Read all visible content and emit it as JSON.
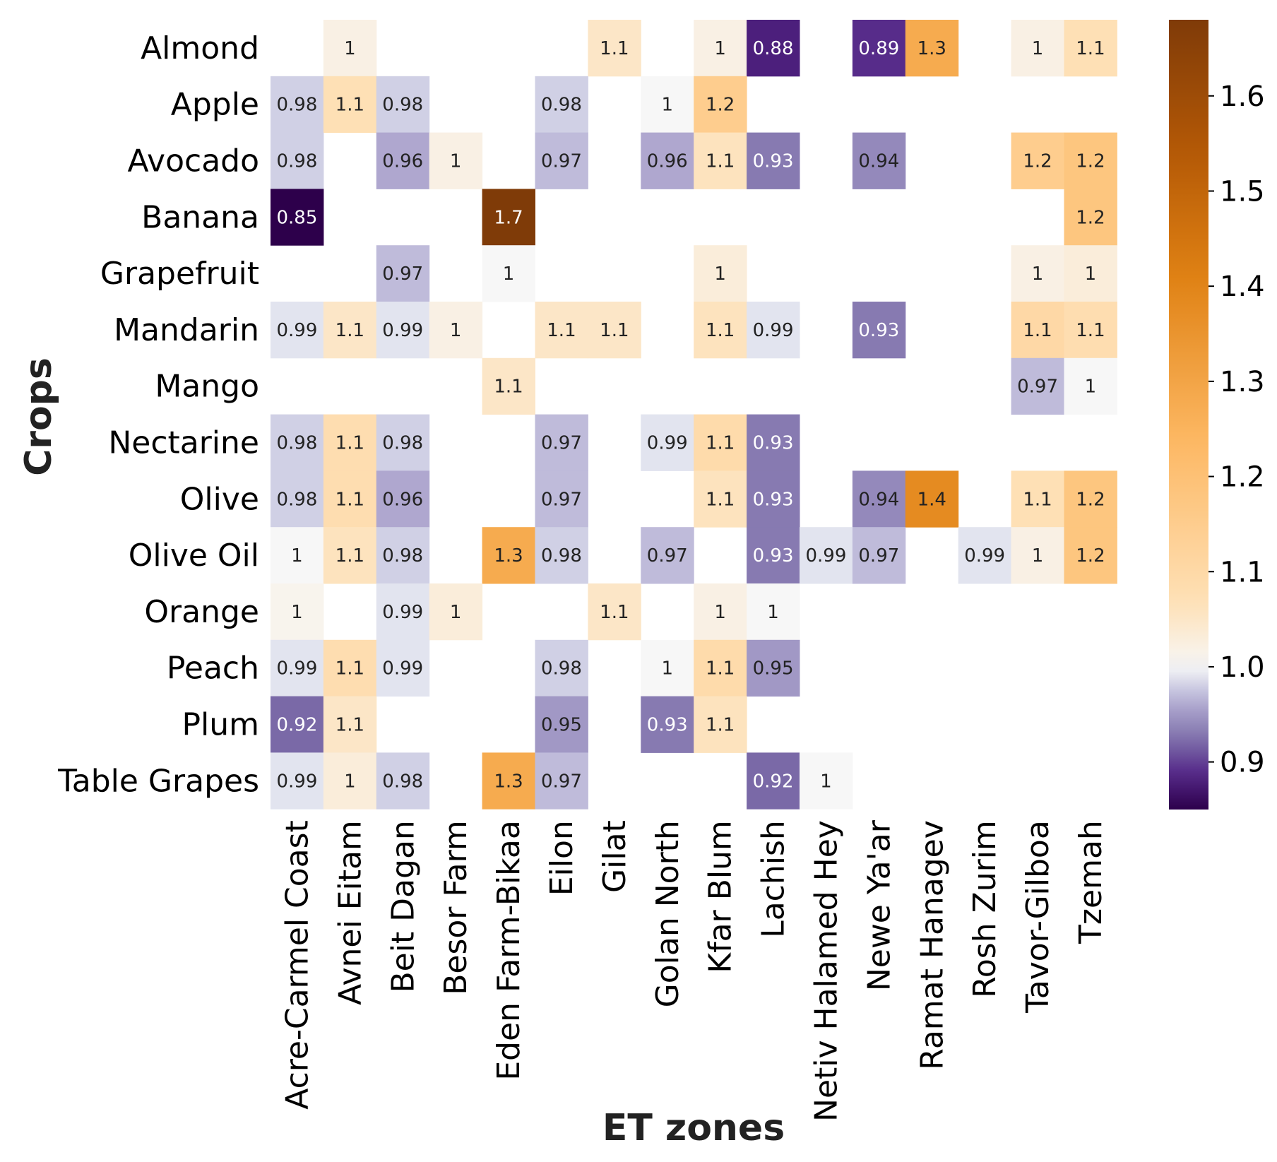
{
  "chart_data": {
    "type": "heatmap",
    "title": "",
    "xlabel": "ET zones",
    "ylabel": "Crops",
    "columns": [
      "Acre-Carmel Coast",
      "Avnei Eitam",
      "Beit Dagan",
      "Besor Farm",
      "Eden Farm-Bikaa",
      "Eilon",
      "Gilat",
      "Golan North",
      "Kfar Blum",
      "Lachish",
      "Netiv Halamed Hey",
      "Newe Ya'ar",
      "Ramat Hanagev",
      "Rosh Zurim",
      "Tavor-Gilboa",
      "Tzemah"
    ],
    "rows": [
      "Almond",
      "Apple",
      "Avocado",
      "Banana",
      "Grapefruit",
      "Mandarin",
      "Mango",
      "Nectarine",
      "Olive",
      "Olive Oil",
      "Orange",
      "Peach",
      "Plum",
      "Table Grapes"
    ],
    "values": [
      [
        null,
        1.02,
        null,
        null,
        null,
        null,
        1.05,
        null,
        1.02,
        0.88,
        null,
        0.89,
        1.28,
        null,
        1.02,
        1.07
      ],
      [
        0.98,
        1.07,
        0.98,
        null,
        null,
        0.98,
        null,
        1.0,
        1.15,
        null,
        null,
        null,
        null,
        null,
        null,
        null
      ],
      [
        0.98,
        null,
        0.96,
        1.02,
        null,
        0.97,
        null,
        0.96,
        1.06,
        0.93,
        null,
        0.94,
        null,
        null,
        1.15,
        1.18
      ],
      [
        0.85,
        null,
        null,
        null,
        1.68,
        null,
        null,
        null,
        null,
        null,
        null,
        null,
        null,
        null,
        null,
        1.18
      ],
      [
        null,
        null,
        0.97,
        null,
        1.0,
        null,
        null,
        null,
        1.03,
        null,
        null,
        null,
        null,
        null,
        1.02,
        1.03
      ],
      [
        0.99,
        1.05,
        0.99,
        1.02,
        null,
        1.05,
        1.05,
        null,
        1.06,
        0.99,
        null,
        0.93,
        null,
        null,
        1.1,
        1.08
      ],
      [
        null,
        null,
        null,
        null,
        1.05,
        null,
        null,
        null,
        null,
        null,
        null,
        null,
        null,
        null,
        0.97,
        1.0
      ],
      [
        0.98,
        1.08,
        0.98,
        null,
        null,
        0.97,
        null,
        0.99,
        1.09,
        0.93,
        null,
        null,
        null,
        null,
        null,
        null
      ],
      [
        0.98,
        1.08,
        0.96,
        null,
        null,
        0.97,
        null,
        null,
        1.06,
        0.93,
        null,
        0.94,
        1.38,
        null,
        1.07,
        1.18
      ],
      [
        1.0,
        1.06,
        0.98,
        null,
        1.28,
        0.98,
        null,
        0.97,
        null,
        0.93,
        0.99,
        0.97,
        null,
        0.99,
        1.02,
        1.18
      ],
      [
        1.01,
        null,
        0.99,
        1.03,
        null,
        null,
        1.05,
        null,
        1.02,
        1.0,
        null,
        null,
        null,
        null,
        null,
        null
      ],
      [
        0.99,
        1.08,
        0.99,
        null,
        null,
        0.98,
        null,
        1.0,
        1.09,
        0.95,
        null,
        null,
        null,
        null,
        null,
        null
      ],
      [
        0.92,
        1.05,
        null,
        null,
        null,
        0.95,
        null,
        0.93,
        1.06,
        null,
        null,
        null,
        null,
        null,
        null,
        null
      ],
      [
        0.99,
        1.03,
        0.98,
        null,
        1.28,
        0.97,
        null,
        null,
        null,
        0.92,
        1.0,
        null,
        null,
        null,
        null,
        null
      ]
    ],
    "labels": [
      [
        null,
        "1",
        null,
        null,
        null,
        null,
        "1.1",
        null,
        "1",
        "0.88",
        null,
        "0.89",
        "1.3",
        null,
        "1",
        "1.1"
      ],
      [
        "0.98",
        "1.1",
        "0.98",
        null,
        null,
        "0.98",
        null,
        "1",
        "1.2",
        null,
        null,
        null,
        null,
        null,
        null,
        null
      ],
      [
        "0.98",
        null,
        "0.96",
        "1",
        null,
        "0.97",
        null,
        "0.96",
        "1.1",
        "0.93",
        null,
        "0.94",
        null,
        null,
        "1.2",
        "1.2"
      ],
      [
        "0.85",
        null,
        null,
        null,
        "1.7",
        null,
        null,
        null,
        null,
        null,
        null,
        null,
        null,
        null,
        null,
        "1.2"
      ],
      [
        null,
        null,
        "0.97",
        null,
        "1",
        null,
        null,
        null,
        "1",
        null,
        null,
        null,
        null,
        null,
        "1",
        "1"
      ],
      [
        "0.99",
        "1.1",
        "0.99",
        "1",
        null,
        "1.1",
        "1.1",
        null,
        "1.1",
        "0.99",
        null,
        "0.93",
        null,
        null,
        "1.1",
        "1.1"
      ],
      [
        null,
        null,
        null,
        null,
        "1.1",
        null,
        null,
        null,
        null,
        null,
        null,
        null,
        null,
        null,
        "0.97",
        "1"
      ],
      [
        "0.98",
        "1.1",
        "0.98",
        null,
        null,
        "0.97",
        null,
        "0.99",
        "1.1",
        "0.93",
        null,
        null,
        null,
        null,
        null,
        null
      ],
      [
        "0.98",
        "1.1",
        "0.96",
        null,
        null,
        "0.97",
        null,
        null,
        "1.1",
        "0.93",
        null,
        "0.94",
        "1.4",
        null,
        "1.1",
        "1.2"
      ],
      [
        "1",
        "1.1",
        "0.98",
        null,
        "1.3",
        "0.98",
        null,
        "0.97",
        null,
        "0.93",
        "0.99",
        "0.97",
        null,
        "0.99",
        "1",
        "1.2"
      ],
      [
        "1",
        null,
        "0.99",
        "1",
        null,
        null,
        "1.1",
        null,
        "1",
        "1",
        null,
        null,
        null,
        null,
        null,
        null
      ],
      [
        "0.99",
        "1.1",
        "0.99",
        null,
        null,
        "0.98",
        null,
        "1",
        "1.1",
        "0.95",
        null,
        null,
        null,
        null,
        null,
        null
      ],
      [
        "0.92",
        "1.1",
        null,
        null,
        null,
        "0.95",
        null,
        "0.93",
        "1.1",
        null,
        null,
        null,
        null,
        null,
        null,
        null
      ],
      [
        "0.99",
        "1",
        "0.98",
        null,
        "1.3",
        "0.97",
        null,
        null,
        null,
        "0.92",
        "1",
        null,
        null,
        null,
        null,
        null
      ]
    ],
    "colorbar": {
      "range": [
        0.85,
        1.68
      ],
      "center": 1.0,
      "ticks": [
        "0.9",
        "1.0",
        "1.1",
        "1.2",
        "1.3",
        "1.4",
        "1.5",
        "1.6"
      ],
      "colormap": "PuOr_r",
      "low_color": "#2d004b",
      "mid_color": "#f7f7f7",
      "high_color": "#7f3b08"
    },
    "grid": false,
    "legend": "colorbar-right"
  }
}
